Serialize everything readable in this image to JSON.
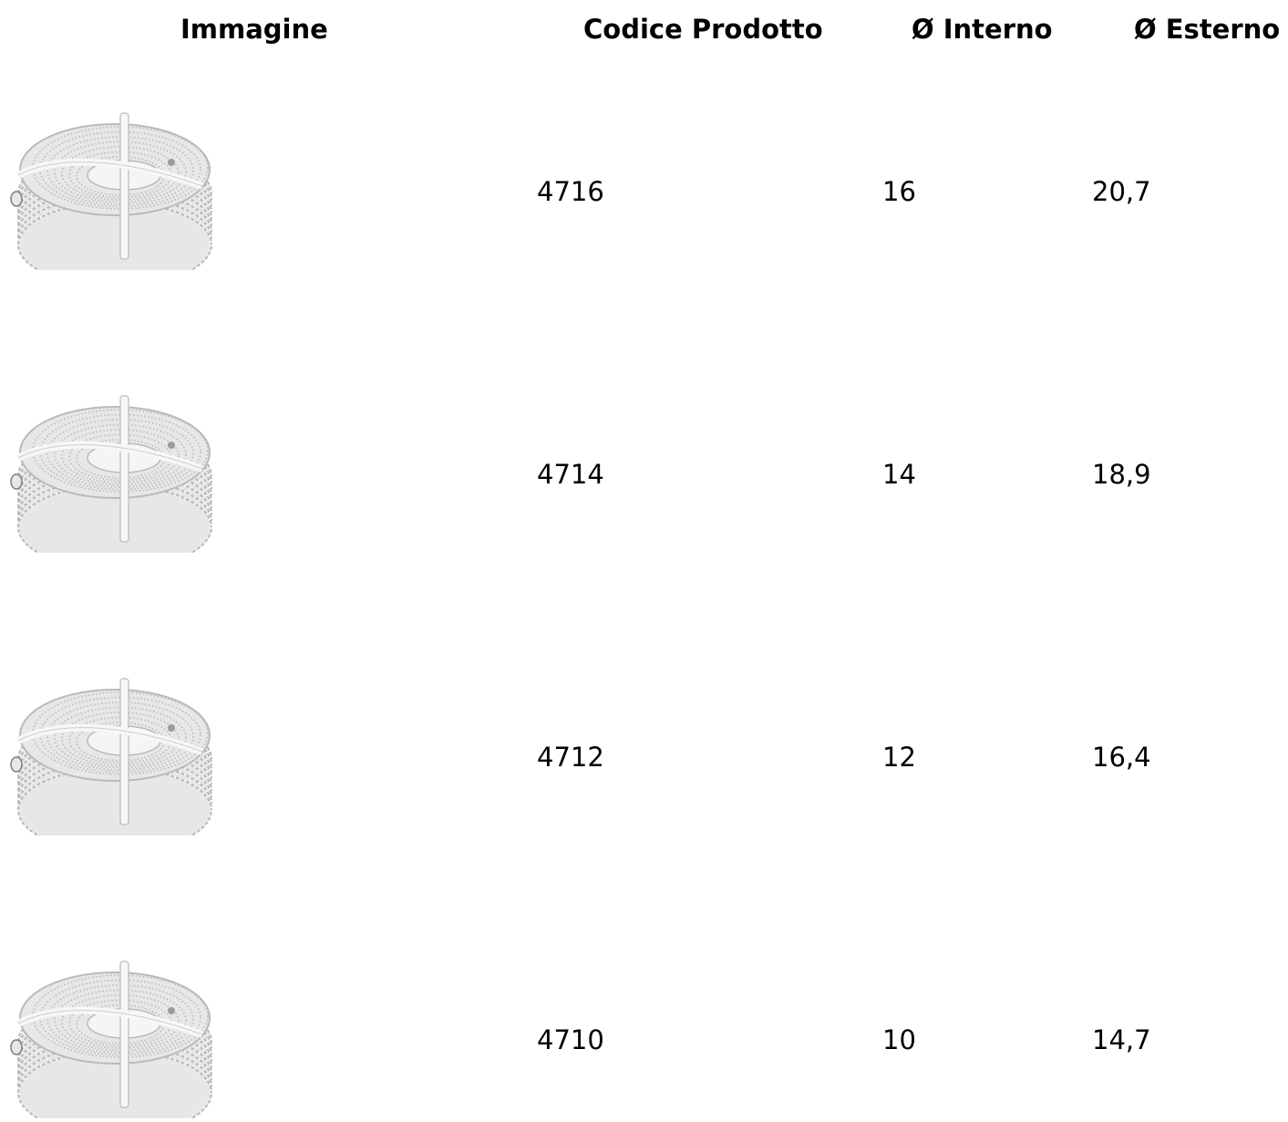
{
  "table": {
    "headers": {
      "image": "Immagine",
      "code": "Codice Prodotto",
      "inner": "Ø Interno",
      "outer": "Ø Esterno"
    },
    "rows": [
      {
        "image_icon": "corrugated-hose-coil-image",
        "code": "4716",
        "inner": "16",
        "outer": "20,7"
      },
      {
        "image_icon": "corrugated-hose-coil-image",
        "code": "4714",
        "inner": "14",
        "outer": "18,9"
      },
      {
        "image_icon": "corrugated-hose-coil-image",
        "code": "4712",
        "inner": "12",
        "outer": "16,4"
      },
      {
        "image_icon": "corrugated-hose-coil-image",
        "code": "4710",
        "inner": "10",
        "outer": "14,7"
      }
    ]
  },
  "colors": {
    "text": "#000000",
    "background": "#ffffff",
    "hose": "#e6e7e6",
    "hose_shadow": "#b9bbb9"
  }
}
